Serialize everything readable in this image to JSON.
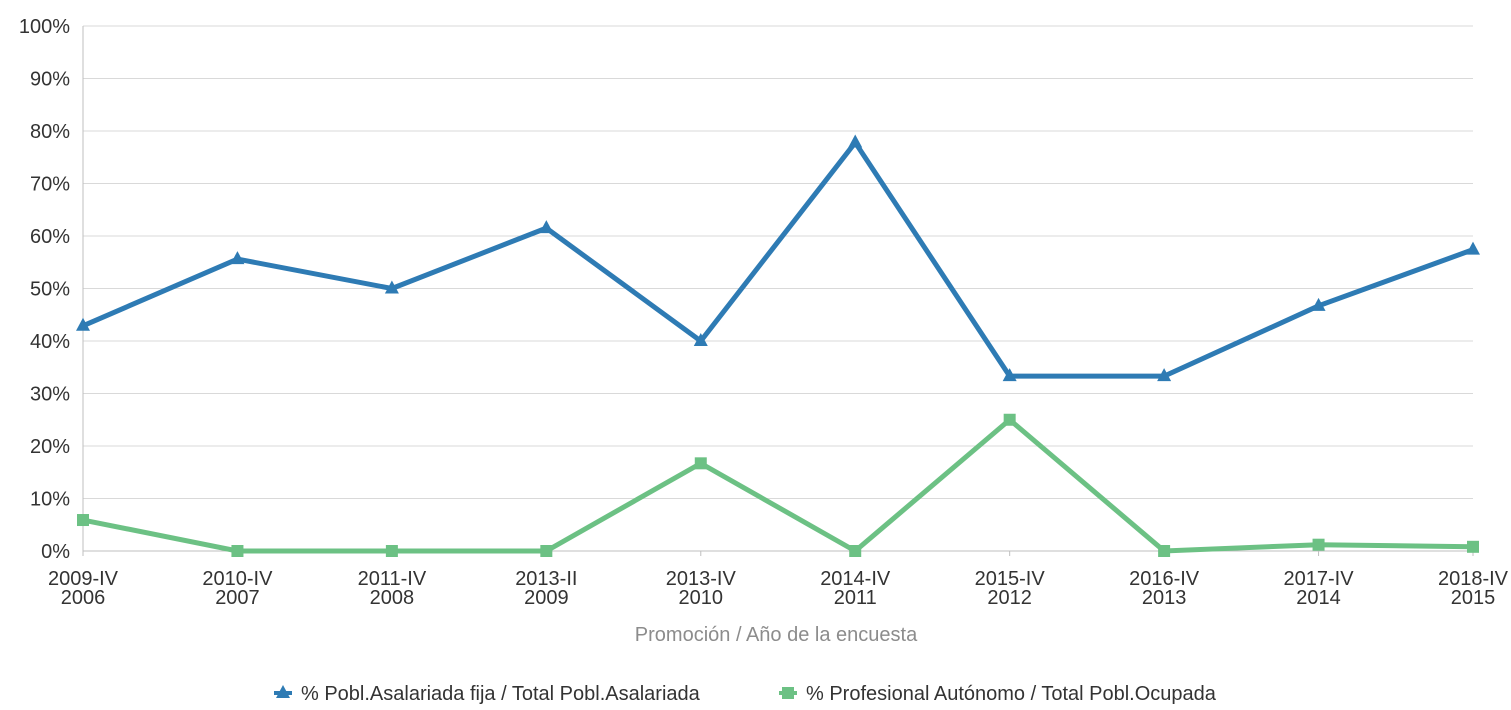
{
  "chart_data": {
    "type": "line",
    "xlabel": "Promoción / Año de la encuesta",
    "ylabel": "",
    "ylim": [
      0,
      100
    ],
    "y_ticks": [
      "0%",
      "10%",
      "20%",
      "30%",
      "40%",
      "50%",
      "60%",
      "70%",
      "80%",
      "90%",
      "100%"
    ],
    "grid": true,
    "legend_position": "bottom",
    "categories": [
      {
        "line1": "2009-IV",
        "line2": "2006"
      },
      {
        "line1": "2010-IV",
        "line2": "2007"
      },
      {
        "line1": "2011-IV",
        "line2": "2008"
      },
      {
        "line1": "2013-II",
        "line2": "2009"
      },
      {
        "line1": "2013-IV",
        "line2": "2010"
      },
      {
        "line1": "2014-IV",
        "line2": "2011"
      },
      {
        "line1": "2015-IV",
        "line2": "2012"
      },
      {
        "line1": "2016-IV",
        "line2": "2013"
      },
      {
        "line1": "2017-IV",
        "line2": "2014"
      },
      {
        "line1": "2018-IV",
        "line2": "2015"
      }
    ],
    "series": [
      {
        "name": "% Pobl.Asalariada fija / Total Pobl.Asalariada",
        "color": "#2e7bb4",
        "marker": "triangle",
        "values": [
          42.9,
          55.6,
          50.0,
          61.5,
          40.0,
          77.8,
          33.3,
          33.3,
          46.7,
          57.4
        ]
      },
      {
        "name": "% Profesional Autónomo / Total Pobl.Ocupada",
        "color": "#6cc184",
        "marker": "square",
        "values": [
          5.9,
          0.0,
          0.0,
          0.0,
          16.7,
          0.0,
          25.0,
          0.0,
          1.2,
          0.8
        ]
      }
    ]
  }
}
